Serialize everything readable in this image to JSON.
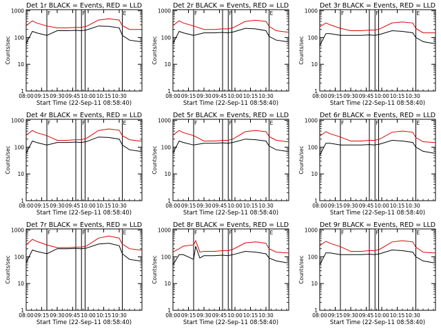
{
  "figure": {
    "common": {
      "xlabel": "Start Time (22-Sep-11 08:58:40)",
      "ylabel": "Counts/sec",
      "x_tick_labels": [
        "08:00",
        "09:15",
        "09:30",
        "09:45",
        "10:00",
        "10:15",
        "10:30"
      ],
      "y_tick_labels": [
        "1",
        "10",
        "100",
        "1000"
      ],
      "x_range_minutes": [
        0,
        112
      ],
      "y_range": [
        1,
        1100
      ],
      "y_scale": "log",
      "vline_markers": [
        "F",
        "F",
        "E"
      ],
      "vline_minutes": [
        20,
        48,
        53.5,
        57,
        93
      ]
    },
    "colors": {
      "events": "#000000",
      "lld": "#dd0000",
      "axes": "#000000"
    }
  },
  "chart_data": [
    {
      "type": "line",
      "title": "Det 1r BLACK = Events, RED = LLD",
      "series": [
        {
          "name": "Events",
          "color": "black",
          "x": [
            0,
            6,
            10,
            20,
            30,
            40,
            48,
            53,
            58,
            70,
            80,
            90,
            93,
            100,
            110,
            112
          ],
          "y": [
            60,
            170,
            150,
            120,
            180,
            180,
            185,
            180,
            190,
            270,
            260,
            230,
            120,
            80,
            70,
            70
          ]
        },
        {
          "name": "LLD",
          "color": "red",
          "x": [
            0,
            6,
            10,
            20,
            30,
            40,
            48,
            53,
            58,
            70,
            80,
            90,
            93,
            100,
            110,
            112
          ],
          "y": [
            280,
            420,
            350,
            270,
            230,
            230,
            240,
            240,
            260,
            450,
            500,
            450,
            280,
            200,
            200,
            200
          ]
        }
      ]
    },
    {
      "type": "line",
      "title": "Det 2r BLACK = Events, RED = LLD",
      "series": [
        {
          "name": "Events",
          "color": "black",
          "x": [
            0,
            6,
            10,
            20,
            30,
            40,
            48,
            53,
            58,
            70,
            80,
            90,
            93,
            100,
            110,
            112
          ],
          "y": [
            60,
            170,
            150,
            120,
            150,
            150,
            155,
            150,
            160,
            220,
            210,
            180,
            110,
            80,
            70,
            70
          ]
        },
        {
          "name": "LLD",
          "color": "red",
          "x": [
            0,
            6,
            10,
            20,
            30,
            40,
            48,
            53,
            58,
            70,
            80,
            90,
            93,
            100,
            110,
            112
          ],
          "y": [
            280,
            420,
            350,
            270,
            200,
            200,
            210,
            210,
            230,
            400,
            440,
            400,
            260,
            180,
            160,
            160
          ]
        }
      ]
    },
    {
      "type": "line",
      "title": "Det 3r BLACK = Events, RED = LLD",
      "series": [
        {
          "name": "Events",
          "color": "black",
          "x": [
            0,
            6,
            10,
            20,
            30,
            40,
            48,
            53,
            58,
            70,
            80,
            90,
            93,
            100,
            110,
            112
          ],
          "y": [
            50,
            140,
            140,
            120,
            120,
            120,
            125,
            120,
            130,
            180,
            170,
            150,
            100,
            70,
            60,
            60
          ]
        },
        {
          "name": "LLD",
          "color": "red",
          "x": [
            0,
            6,
            10,
            20,
            30,
            40,
            48,
            53,
            58,
            70,
            80,
            90,
            93,
            100,
            110,
            112
          ],
          "y": [
            250,
            350,
            300,
            220,
            180,
            180,
            190,
            190,
            210,
            350,
            380,
            350,
            220,
            150,
            150,
            150
          ]
        }
      ]
    },
    {
      "type": "line",
      "title": "Det 4r BLACK = Events, RED = LLD",
      "series": [
        {
          "name": "Events",
          "color": "black",
          "x": [
            0,
            6,
            10,
            20,
            30,
            40,
            48,
            53,
            58,
            70,
            80,
            90,
            93,
            100,
            110,
            112
          ],
          "y": [
            60,
            170,
            150,
            120,
            150,
            150,
            155,
            150,
            160,
            240,
            230,
            200,
            120,
            80,
            70,
            70
          ]
        },
        {
          "name": "LLD",
          "color": "red",
          "x": [
            0,
            6,
            10,
            20,
            30,
            40,
            48,
            53,
            58,
            70,
            80,
            90,
            93,
            100,
            110,
            112
          ],
          "y": [
            280,
            420,
            350,
            270,
            180,
            180,
            190,
            190,
            210,
            420,
            480,
            430,
            270,
            190,
            170,
            170
          ]
        }
      ]
    },
    {
      "type": "line",
      "title": "Det 5r BLACK = Events, RED = LLD",
      "series": [
        {
          "name": "Events",
          "color": "black",
          "x": [
            0,
            6,
            10,
            20,
            30,
            40,
            48,
            53,
            58,
            70,
            80,
            90,
            93,
            100,
            110,
            112
          ],
          "y": [
            60,
            170,
            150,
            120,
            140,
            140,
            145,
            140,
            150,
            200,
            190,
            170,
            110,
            80,
            70,
            70
          ]
        },
        {
          "name": "LLD",
          "color": "red",
          "x": [
            0,
            6,
            10,
            20,
            30,
            40,
            48,
            53,
            58,
            70,
            80,
            90,
            93,
            100,
            110,
            112
          ],
          "y": [
            280,
            420,
            350,
            270,
            170,
            170,
            180,
            180,
            200,
            380,
            420,
            380,
            250,
            180,
            160,
            160
          ]
        }
      ]
    },
    {
      "type": "line",
      "title": "Det 6r BLACK = Events, RED = LLD",
      "series": [
        {
          "name": "Events",
          "color": "black",
          "x": [
            0,
            6,
            10,
            20,
            30,
            40,
            48,
            53,
            58,
            70,
            80,
            90,
            93,
            100,
            110,
            112
          ],
          "y": [
            50,
            140,
            140,
            120,
            120,
            120,
            125,
            120,
            130,
            180,
            170,
            150,
            100,
            70,
            60,
            60
          ]
        },
        {
          "name": "LLD",
          "color": "red",
          "x": [
            0,
            6,
            10,
            20,
            30,
            40,
            48,
            53,
            58,
            70,
            80,
            90,
            93,
            100,
            110,
            112
          ],
          "y": [
            260,
            380,
            320,
            240,
            170,
            170,
            180,
            180,
            200,
            360,
            400,
            360,
            230,
            160,
            150,
            150
          ]
        }
      ]
    },
    {
      "type": "line",
      "title": "Det 7r BLACK = Events, RED = LLD",
      "series": [
        {
          "name": "Events",
          "color": "black",
          "x": [
            0,
            6,
            10,
            20,
            30,
            40,
            48,
            53,
            58,
            70,
            80,
            90,
            93,
            100,
            110,
            112
          ],
          "y": [
            60,
            180,
            160,
            130,
            200,
            200,
            205,
            200,
            210,
            300,
            320,
            260,
            130,
            80,
            70,
            70
          ]
        },
        {
          "name": "LLD",
          "color": "red",
          "x": [
            0,
            6,
            10,
            20,
            30,
            40,
            48,
            53,
            58,
            70,
            80,
            90,
            93,
            100,
            110,
            112
          ],
          "y": [
            280,
            450,
            380,
            280,
            220,
            220,
            230,
            230,
            250,
            500,
            600,
            500,
            300,
            200,
            180,
            180
          ]
        }
      ]
    },
    {
      "type": "line",
      "title": "Det 8r BLACK = Events, RED = LLD",
      "series": [
        {
          "name": "Events",
          "color": "black",
          "x": [
            0,
            6,
            10,
            20,
            22,
            26,
            30,
            40,
            48,
            53,
            58,
            70,
            80,
            90,
            93,
            100,
            110,
            112
          ],
          "y": [
            50,
            120,
            120,
            80,
            250,
            90,
            110,
            110,
            115,
            110,
            120,
            160,
            150,
            130,
            90,
            70,
            60,
            60
          ]
        },
        {
          "name": "LLD",
          "color": "red",
          "x": [
            0,
            6,
            10,
            20,
            22,
            26,
            30,
            40,
            48,
            53,
            58,
            70,
            80,
            90,
            93,
            100,
            110,
            112
          ],
          "y": [
            150,
            200,
            250,
            280,
            400,
            150,
            160,
            160,
            170,
            170,
            190,
            330,
            360,
            320,
            200,
            150,
            140,
            140
          ]
        }
      ]
    },
    {
      "type": "line",
      "title": "Det 9r BLACK = Events, RED = LLD",
      "series": [
        {
          "name": "Events",
          "color": "black",
          "x": [
            0,
            6,
            10,
            20,
            30,
            40,
            48,
            53,
            58,
            70,
            80,
            90,
            93,
            100,
            110,
            112
          ],
          "y": [
            50,
            140,
            140,
            120,
            120,
            120,
            125,
            120,
            130,
            180,
            170,
            150,
            100,
            70,
            60,
            60
          ]
        },
        {
          "name": "LLD",
          "color": "red",
          "x": [
            0,
            6,
            10,
            20,
            30,
            40,
            48,
            53,
            58,
            70,
            80,
            90,
            93,
            100,
            110,
            112
          ],
          "y": [
            260,
            380,
            320,
            240,
            160,
            160,
            170,
            170,
            190,
            360,
            400,
            360,
            230,
            150,
            140,
            140
          ]
        }
      ]
    }
  ]
}
